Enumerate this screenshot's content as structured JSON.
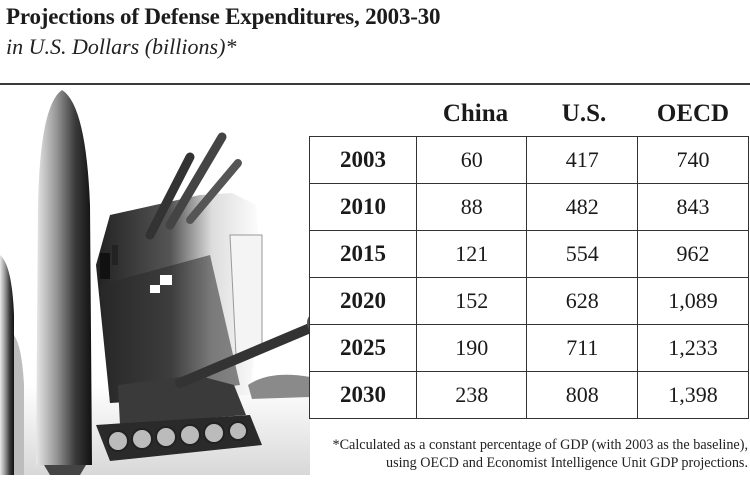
{
  "title": "Projections of Defense Expenditures, 2003-30",
  "subtitle": "in U.S. Dollars (billions)*",
  "columns": [
    "China",
    "U.S.",
    "OECD"
  ],
  "rows": [
    {
      "year": "2003",
      "china": "60",
      "us": "417",
      "oecd": "740"
    },
    {
      "year": "2010",
      "china": "88",
      "us": "482",
      "oecd": "843"
    },
    {
      "year": "2015",
      "china": "121",
      "us": "554",
      "oecd": "962"
    },
    {
      "year": "2020",
      "china": "152",
      "us": "628",
      "oecd": "1,089"
    },
    {
      "year": "2025",
      "china": "190",
      "us": "711",
      "oecd": "1,233"
    },
    {
      "year": "2030",
      "china": "238",
      "us": "808",
      "oecd": "1,398"
    }
  ],
  "footnote_line1": "*Calculated as a constant percentage of GDP (with 2003 as the baseline),",
  "footnote_line2": "using OECD and Economist Intelligence Unit GDP projections.",
  "illustration": {
    "description_icons": [
      "missile-icon",
      "warship-icon",
      "tank-icon"
    ]
  },
  "colors": {
    "ink": "#1a1a1a",
    "rule": "#3a3a3a",
    "background": "#ffffff"
  }
}
